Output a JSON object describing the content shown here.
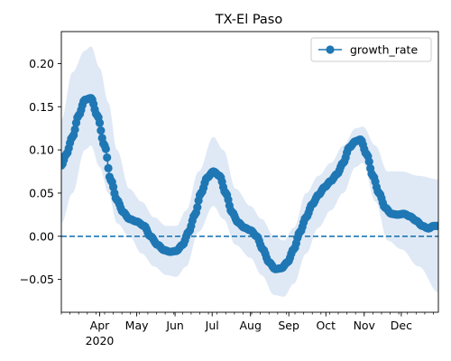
{
  "chart_data": {
    "type": "line",
    "title": "TX-El Paso",
    "xlabel": "",
    "ylabel": "",
    "x_axis": {
      "type": "date",
      "range": [
        "2020-03-01",
        "2020-12-31"
      ],
      "month_ticks": [
        {
          "date": "2020-04-01",
          "label": "Apr",
          "sublabel": "2020"
        },
        {
          "date": "2020-05-01",
          "label": "May"
        },
        {
          "date": "2020-06-01",
          "label": "Jun"
        },
        {
          "date": "2020-07-01",
          "label": "Jul"
        },
        {
          "date": "2020-08-01",
          "label": "Aug"
        },
        {
          "date": "2020-09-01",
          "label": "Sep"
        },
        {
          "date": "2020-10-01",
          "label": "Oct"
        },
        {
          "date": "2020-11-01",
          "label": "Nov"
        },
        {
          "date": "2020-12-01",
          "label": "Dec"
        }
      ]
    },
    "ylim": [
      -0.088,
      0.237
    ],
    "y_ticks": [
      {
        "value": -0.05,
        "label": "−0.05"
      },
      {
        "value": 0.0,
        "label": "0.00"
      },
      {
        "value": 0.05,
        "label": "0.05"
      },
      {
        "value": 0.1,
        "label": "0.10"
      },
      {
        "value": 0.15,
        "label": "0.15"
      },
      {
        "value": 0.2,
        "label": "0.20"
      }
    ],
    "reference_line": {
      "y": 0.0,
      "style": "dashed"
    },
    "legend": {
      "position": "top-right",
      "entries": [
        "growth_rate"
      ]
    },
    "colors": {
      "line": "#1f77b4",
      "band": "#dfe9f5",
      "reference": "#1f77b4"
    },
    "grid": false,
    "series": [
      {
        "name": "growth_rate",
        "marker": "circle",
        "key_points": [
          [
            "2020-03-01",
            0.082
          ],
          [
            "2020-03-05",
            0.095
          ],
          [
            "2020-03-10",
            0.115
          ],
          [
            "2020-03-15",
            0.14
          ],
          [
            "2020-03-20",
            0.158
          ],
          [
            "2020-03-25",
            0.16
          ],
          [
            "2020-03-30",
            0.14
          ],
          [
            "2020-04-05",
            0.105
          ],
          [
            "2020-04-10",
            0.065
          ],
          [
            "2020-04-15",
            0.042
          ],
          [
            "2020-04-20",
            0.028
          ],
          [
            "2020-04-25",
            0.02
          ],
          [
            "2020-05-01",
            0.017
          ],
          [
            "2020-05-07",
            0.012
          ],
          [
            "2020-05-12",
            0.0
          ],
          [
            "2020-05-18",
            -0.01
          ],
          [
            "2020-05-23",
            -0.016
          ],
          [
            "2020-05-28",
            -0.018
          ],
          [
            "2020-06-02",
            -0.017
          ],
          [
            "2020-06-07",
            -0.01
          ],
          [
            "2020-06-12",
            0.005
          ],
          [
            "2020-06-17",
            0.025
          ],
          [
            "2020-06-22",
            0.05
          ],
          [
            "2020-06-27",
            0.068
          ],
          [
            "2020-07-02",
            0.075
          ],
          [
            "2020-07-07",
            0.07
          ],
          [
            "2020-07-12",
            0.05
          ],
          [
            "2020-07-17",
            0.028
          ],
          [
            "2020-07-22",
            0.016
          ],
          [
            "2020-07-27",
            0.01
          ],
          [
            "2020-08-01",
            0.007
          ],
          [
            "2020-08-06",
            0.0
          ],
          [
            "2020-08-11",
            -0.015
          ],
          [
            "2020-08-16",
            -0.03
          ],
          [
            "2020-08-21",
            -0.038
          ],
          [
            "2020-08-26",
            -0.037
          ],
          [
            "2020-08-31",
            -0.03
          ],
          [
            "2020-09-05",
            -0.015
          ],
          [
            "2020-09-10",
            0.005
          ],
          [
            "2020-09-15",
            0.022
          ],
          [
            "2020-09-20",
            0.037
          ],
          [
            "2020-09-25",
            0.048
          ],
          [
            "2020-09-30",
            0.057
          ],
          [
            "2020-10-05",
            0.064
          ],
          [
            "2020-10-10",
            0.072
          ],
          [
            "2020-10-15",
            0.085
          ],
          [
            "2020-10-20",
            0.103
          ],
          [
            "2020-10-25",
            0.11
          ],
          [
            "2020-10-29",
            0.112
          ],
          [
            "2020-11-03",
            0.095
          ],
          [
            "2020-11-08",
            0.07
          ],
          [
            "2020-11-13",
            0.05
          ],
          [
            "2020-11-18",
            0.033
          ],
          [
            "2020-11-23",
            0.026
          ],
          [
            "2020-11-28",
            0.025
          ],
          [
            "2020-12-03",
            0.026
          ],
          [
            "2020-12-08",
            0.023
          ],
          [
            "2020-12-13",
            0.018
          ],
          [
            "2020-12-18",
            0.012
          ],
          [
            "2020-12-23",
            0.009
          ],
          [
            "2020-12-27",
            0.012
          ],
          [
            "2020-12-31",
            0.012
          ]
        ],
        "band_upper": [
          [
            "2020-03-01",
            0.135
          ],
          [
            "2020-03-10",
            0.19
          ],
          [
            "2020-03-20",
            0.215
          ],
          [
            "2020-03-25",
            0.22
          ],
          [
            "2020-04-01",
            0.195
          ],
          [
            "2020-04-08",
            0.155
          ],
          [
            "2020-04-15",
            0.1
          ],
          [
            "2020-04-25",
            0.055
          ],
          [
            "2020-05-05",
            0.04
          ],
          [
            "2020-05-15",
            0.022
          ],
          [
            "2020-05-25",
            0.012
          ],
          [
            "2020-06-02",
            0.012
          ],
          [
            "2020-06-10",
            0.03
          ],
          [
            "2020-06-20",
            0.075
          ],
          [
            "2020-07-02",
            0.115
          ],
          [
            "2020-07-10",
            0.1
          ],
          [
            "2020-07-20",
            0.055
          ],
          [
            "2020-08-01",
            0.035
          ],
          [
            "2020-08-10",
            0.02
          ],
          [
            "2020-08-20",
            0.0
          ],
          [
            "2020-08-28",
            -0.005
          ],
          [
            "2020-09-05",
            0.01
          ],
          [
            "2020-09-15",
            0.05
          ],
          [
            "2020-09-25",
            0.07
          ],
          [
            "2020-10-05",
            0.085
          ],
          [
            "2020-10-15",
            0.105
          ],
          [
            "2020-10-25",
            0.125
          ],
          [
            "2020-10-31",
            0.127
          ],
          [
            "2020-11-10",
            0.105
          ],
          [
            "2020-11-20",
            0.075
          ],
          [
            "2020-12-01",
            0.075
          ],
          [
            "2020-12-15",
            0.07
          ],
          [
            "2020-12-31",
            0.066
          ]
        ],
        "band_lower": [
          [
            "2020-03-01",
            0.015
          ],
          [
            "2020-03-10",
            0.05
          ],
          [
            "2020-03-20",
            0.1
          ],
          [
            "2020-03-25",
            0.105
          ],
          [
            "2020-04-01",
            0.08
          ],
          [
            "2020-04-08",
            0.05
          ],
          [
            "2020-04-15",
            0.015
          ],
          [
            "2020-04-25",
            0.0
          ],
          [
            "2020-05-05",
            -0.02
          ],
          [
            "2020-05-15",
            -0.035
          ],
          [
            "2020-05-25",
            -0.045
          ],
          [
            "2020-06-02",
            -0.047
          ],
          [
            "2020-06-10",
            -0.035
          ],
          [
            "2020-06-20",
            0.005
          ],
          [
            "2020-07-02",
            0.035
          ],
          [
            "2020-07-10",
            0.02
          ],
          [
            "2020-07-20",
            -0.01
          ],
          [
            "2020-08-01",
            -0.025
          ],
          [
            "2020-08-10",
            -0.045
          ],
          [
            "2020-08-20",
            -0.068
          ],
          [
            "2020-08-28",
            -0.07
          ],
          [
            "2020-09-05",
            -0.055
          ],
          [
            "2020-09-15",
            -0.02
          ],
          [
            "2020-09-25",
            0.01
          ],
          [
            "2020-10-05",
            0.03
          ],
          [
            "2020-10-15",
            0.05
          ],
          [
            "2020-10-25",
            0.08
          ],
          [
            "2020-10-31",
            0.085
          ],
          [
            "2020-11-10",
            0.04
          ],
          [
            "2020-11-20",
            -0.005
          ],
          [
            "2020-12-01",
            -0.015
          ],
          [
            "2020-12-15",
            -0.035
          ],
          [
            "2020-12-31",
            -0.065
          ]
        ]
      }
    ]
  }
}
